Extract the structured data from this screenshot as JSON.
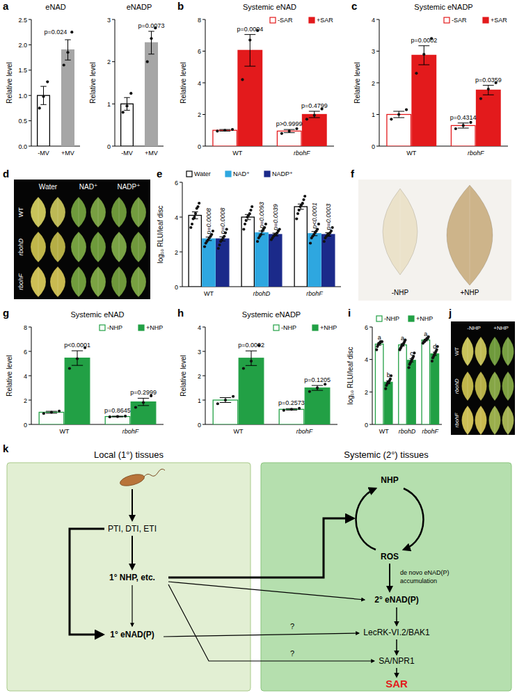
{
  "chart_data": [
    {
      "type": "bar",
      "panel": "a",
      "title": "eNAD",
      "y_label": "Relative level",
      "categories": [
        "-MV",
        "+MV"
      ],
      "series": [
        {
          "type": "bar",
          "colors": [
            "#ffffff",
            "#a6a6a6"
          ],
          "values": [
            1.0,
            1.9
          ],
          "errors": [
            0.18,
            0.2
          ],
          "points": [
            [
              0.75,
              0.98,
              1.27
            ],
            [
              1.6,
              1.85,
              2.25
            ]
          ],
          "significance": [
            null,
            "p=0.024"
          ]
        }
      ],
      "ylim": [
        0,
        2.5
      ],
      "yticks": [
        {
          "value": 0,
          "label": "0.0"
        },
        0.5,
        {
          "value": 1,
          "label": "1.0"
        },
        1.5,
        {
          "value": 2,
          "label": "2.0"
        },
        2.5
      ]
    },
    {
      "type": "bar",
      "title": "eNADP",
      "y_label": "Relative level",
      "categories": [
        "-MV",
        "+MV"
      ],
      "series": [
        {
          "type": "bar",
          "colors": [
            "#ffffff",
            "#a6a6a6"
          ],
          "values": [
            1.0,
            2.45
          ],
          "errors": [
            0.15,
            0.27
          ],
          "points": [
            [
              0.8,
              0.95,
              1.25
            ],
            [
              2.0,
              2.55,
              2.8
            ]
          ],
          "significance": [
            null,
            "p=0.0073"
          ]
        }
      ],
      "ylim": [
        0,
        3
      ],
      "yticks": [
        0,
        1,
        2,
        3
      ]
    },
    {
      "type": "bar",
      "panel": "b",
      "title": "Systemic eNAD",
      "y_label": "Relative level",
      "categories": [
        "WT",
        "rbohF"
      ],
      "legend": "top-right",
      "series": [
        {
          "name": "-SAR",
          "type": "open_bar",
          "color": "#e31a1c",
          "values": [
            1.0,
            0.95
          ],
          "errors": [
            0.05,
            0.1
          ],
          "points": [
            [
              0.95,
              1.0,
              1.05
            ],
            [
              0.8,
              0.95,
              1.1
            ]
          ],
          "significance": [
            null,
            "p>0.9999"
          ]
        },
        {
          "name": "+SAR",
          "type": "bar",
          "color": "#e31a1c",
          "values": [
            6.05,
            2.0
          ],
          "errors": [
            1.0,
            0.2
          ],
          "points": [
            [
              4.2,
              6.7,
              7.3
            ],
            [
              1.7,
              1.95,
              2.35
            ]
          ],
          "significance": [
            "p=0.0004",
            "p=0.4799"
          ]
        }
      ],
      "ylim": [
        0,
        8
      ],
      "yticks": [
        0,
        2,
        4,
        6,
        8
      ]
    },
    {
      "type": "bar",
      "panel": "c",
      "title": "Systemic eNADP",
      "y_label": "Relative level",
      "categories": [
        "WT",
        "rbohF"
      ],
      "legend": "top-right",
      "series": [
        {
          "name": "-SAR",
          "type": "open_bar",
          "color": "#e31a1c",
          "values": [
            1.0,
            0.65
          ],
          "errors": [
            0.1,
            0.08
          ],
          "points": [
            [
              0.85,
              1.0,
              1.15
            ],
            [
              0.55,
              0.65,
              0.75
            ]
          ],
          "significance": [
            null,
            "p=0.4314"
          ]
        },
        {
          "name": "+SAR",
          "type": "bar",
          "color": "#e31a1c",
          "values": [
            2.87,
            1.77
          ],
          "errors": [
            0.3,
            0.15
          ],
          "points": [
            [
              2.3,
              2.9,
              3.4
            ],
            [
              1.5,
              1.8,
              2.0
            ]
          ],
          "significance": [
            "p=0.0002",
            "p=0.0359"
          ]
        }
      ],
      "ylim": [
        0,
        4
      ],
      "yticks": [
        0,
        1,
        2,
        3,
        4
      ]
    },
    {
      "type": "bar",
      "panel": "e",
      "y_label": "log₁₀ RLU/leaf disc",
      "categories": [
        "WT",
        "rbohD",
        "rbohF"
      ],
      "legend": "top-left",
      "series": [
        {
          "name": "Water",
          "type": "open_bar",
          "color": "#000000",
          "values": [
            4.1,
            4.0,
            4.6
          ],
          "errors": [
            0.2,
            0.15,
            0.15
          ],
          "points": [
            [
              3.4,
              3.6,
              3.9,
              4.0,
              4.2,
              4.5,
              4.6,
              4.8
            ],
            [
              3.3,
              3.6,
              3.8,
              4.0,
              4.1,
              4.2,
              4.4,
              4.6
            ],
            [
              3.9,
              4.2,
              4.4,
              4.6,
              4.7,
              4.8,
              5.0,
              5.2
            ]
          ],
          "significance": [
            null,
            null,
            null
          ]
        },
        {
          "name": "NAD⁺",
          "type": "bar",
          "color": "#2ea7e0",
          "values": [
            2.75,
            3.1,
            3.05
          ],
          "errors": [
            0.1,
            0.1,
            0.12
          ],
          "points": [
            [
              2.3,
              2.5,
              2.6,
              2.7,
              2.8,
              2.9,
              3.0,
              3.2
            ],
            [
              2.6,
              2.8,
              2.9,
              3.0,
              3.2,
              3.3,
              3.4,
              3.6
            ],
            [
              2.5,
              2.8,
              2.9,
              3.0,
              3.1,
              3.2,
              3.3,
              3.6
            ]
          ],
          "significance": [
            "p=0.0008",
            "p=0.0093",
            "p<0.0001"
          ]
        },
        {
          "name": "NADP⁺",
          "type": "bar",
          "color": "#1b2a8a",
          "values": [
            2.75,
            3.0,
            3.0
          ],
          "errors": [
            0.12,
            0.08,
            0.1
          ],
          "points": [
            [
              2.2,
              2.4,
              2.6,
              2.7,
              2.8,
              2.9,
              3.1,
              3.3
            ],
            [
              2.7,
              2.8,
              2.9,
              3.0,
              3.0,
              3.1,
              3.2,
              3.3
            ],
            [
              2.6,
              2.8,
              2.9,
              3.0,
              3.0,
              3.1,
              3.2,
              3.4
            ]
          ],
          "significance": [
            "p=0.0008",
            "p=0.0039",
            "p=0.0003"
          ]
        }
      ],
      "ylim": [
        0,
        6
      ],
      "yticks": [
        0,
        2,
        4,
        6
      ]
    },
    {
      "type": "bar",
      "panel": "g",
      "title": "Systemic eNAD",
      "y_label": "Relative level",
      "categories": [
        "WT",
        "rbohF"
      ],
      "legend": "top-right",
      "series": [
        {
          "name": "-NHP",
          "type": "open_bar",
          "color": "#22a045",
          "values": [
            1.0,
            0.65
          ],
          "errors": [
            0.08,
            0.03
          ],
          "points": [
            [
              0.9,
              1.0,
              1.1
            ],
            [
              0.62,
              0.65,
              0.68
            ]
          ],
          "significance": [
            null,
            "p=0.8645"
          ]
        },
        {
          "name": "+NHP",
          "type": "bar",
          "color": "#22a045",
          "values": [
            5.45,
            1.85
          ],
          "errors": [
            0.6,
            0.3
          ],
          "points": [
            [
              4.6,
              5.4,
              6.3
            ],
            [
              1.4,
              1.8,
              2.35
            ]
          ],
          "significance": [
            "p<0.0001",
            "p=0.2999"
          ]
        }
      ],
      "ylim": [
        0,
        8
      ],
      "yticks": [
        0,
        2,
        4,
        6,
        8
      ]
    },
    {
      "type": "bar",
      "panel": "h",
      "title": "Systemic eNADP",
      "y_label": "Relative level",
      "categories": [
        "WT",
        "rbohF"
      ],
      "legend": "top-right",
      "series": [
        {
          "name": "-NHP",
          "type": "open_bar",
          "color": "#22a045",
          "values": [
            1.0,
            0.62
          ],
          "errors": [
            0.1,
            0.03
          ],
          "points": [
            [
              0.85,
              1.0,
              1.15
            ],
            [
              0.58,
              0.62,
              0.66
            ]
          ],
          "significance": [
            null,
            "p=0.2573"
          ]
        },
        {
          "name": "+NHP",
          "type": "bar",
          "color": "#22a045",
          "values": [
            2.72,
            1.5
          ],
          "errors": [
            0.3,
            0.1
          ],
          "points": [
            [
              2.3,
              2.6,
              3.25
            ],
            [
              1.35,
              1.5,
              1.65
            ]
          ],
          "significance": [
            "p=0.0002",
            "p=0.1205"
          ]
        }
      ],
      "ylim": [
        0,
        4
      ],
      "yticks": [
        0,
        1,
        2,
        3,
        4
      ]
    },
    {
      "type": "bar",
      "panel": "i",
      "y_label": "log₁₀ RLU/leaf disc",
      "categories": [
        "WT",
        "rbohD",
        "rbohF"
      ],
      "legend": "top-left",
      "series": [
        {
          "name": "-NHP",
          "type": "open_bar",
          "color": "#22a045",
          "values": [
            4.95,
            4.9,
            5.2
          ],
          "errors": [
            0.07,
            0.07,
            0.05
          ],
          "points": [
            [
              4.6,
              4.8,
              4.9,
              5.0,
              5.0,
              5.1,
              5.1,
              5.1
            ],
            [
              4.6,
              4.7,
              4.8,
              4.9,
              4.9,
              5.0,
              5.1,
              5.2
            ],
            [
              5.0,
              5.1,
              5.1,
              5.2,
              5.2,
              5.3,
              5.3,
              5.4
            ]
          ],
          "significance": [
            "a",
            "a",
            "a"
          ]
        },
        {
          "name": "+NHP",
          "type": "bar",
          "color": "#22a045",
          "values": [
            2.6,
            3.95,
            4.35
          ],
          "errors": [
            0.09,
            0.1,
            0.1
          ],
          "points": [
            [
              2.2,
              2.4,
              2.5,
              2.6,
              2.6,
              2.7,
              2.8,
              3.0
            ],
            [
              3.5,
              3.7,
              3.8,
              3.9,
              4.0,
              4.1,
              4.2,
              4.4
            ],
            [
              3.9,
              4.1,
              4.2,
              4.3,
              4.4,
              4.5,
              4.6,
              4.8
            ]
          ],
          "significance": [
            "b",
            "c",
            "d"
          ]
        }
      ],
      "ylim": [
        0,
        6
      ],
      "yticks": [
        0,
        2,
        4,
        6
      ]
    }
  ],
  "images": [
    {
      "panel": "d",
      "column_labels": [
        "Water",
        "NAD⁺",
        "NADP⁺"
      ],
      "row_labels": [
        "WT",
        "rbohD",
        "rbohF"
      ]
    },
    {
      "panel": "f",
      "labels": [
        "-NHP",
        "+NHP"
      ]
    },
    {
      "panel": "j",
      "column_labels": [
        "-NHP",
        "+NHP"
      ],
      "row_labels": [
        "WT",
        "rbohD",
        "rbohF"
      ]
    }
  ],
  "diagram": {
    "panel": "k",
    "regions": [
      "Local (1°) tissues",
      "Systemic (2°) tissues"
    ],
    "nodes": [
      {
        "label": "PTI, DTI, ETI"
      },
      {
        "label": "1° NHP, etc.",
        "bold": true
      },
      {
        "label": "1° eNAD(P)",
        "bold": true
      },
      {
        "label": "NHP",
        "bold": true
      },
      {
        "label": "ROS",
        "bold": true
      },
      {
        "label": "2° eNAD(P)",
        "bold": true
      },
      {
        "label": "LecRK-VI.2/BAK1"
      },
      {
        "label": "SA/NPR1"
      },
      {
        "label": "SAR",
        "bold": true,
        "color": "#e31a1c"
      }
    ],
    "notes": [
      "de novo eNAD(P)",
      "accumulation"
    ],
    "question_marks": [
      "?",
      "?"
    ]
  }
}
